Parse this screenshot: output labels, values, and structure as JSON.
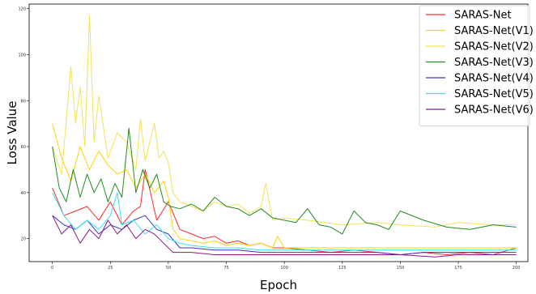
{
  "chart_data": {
    "type": "line",
    "xlabel": "Epoch",
    "ylabel": "Loss Value",
    "xlim": [
      -10,
      205
    ],
    "ylim": [
      10,
      122
    ],
    "xticks": [
      0,
      25,
      50,
      75,
      100,
      125,
      150,
      175,
      200
    ],
    "yticks": [
      20,
      40,
      60,
      80,
      100,
      120
    ],
    "grid": false,
    "legend_position": "top-right",
    "series": [
      {
        "name": "SARAS-Net",
        "color": "#ff2a2a",
        "x": [
          0,
          5,
          10,
          15,
          20,
          25,
          30,
          35,
          38,
          40,
          45,
          50,
          55,
          60,
          65,
          70,
          75,
          80,
          85,
          90,
          95,
          100,
          110,
          120,
          130,
          140,
          150,
          160,
          170,
          180,
          190,
          200
        ],
        "y": [
          42,
          30,
          32,
          34,
          28,
          36,
          26,
          32,
          34,
          50,
          28,
          36,
          24,
          22,
          20,
          21,
          18,
          19,
          17,
          18,
          16,
          16,
          15,
          14,
          15,
          14,
          13,
          14,
          13,
          14,
          13,
          16
        ]
      },
      {
        "name": "SARAS-Net(V1)",
        "color": "#ffd400",
        "x": [
          0,
          4,
          8,
          12,
          16,
          20,
          24,
          28,
          32,
          36,
          40,
          44,
          48,
          50,
          52,
          55,
          60,
          65,
          70,
          75,
          80,
          85,
          90,
          95,
          97,
          100,
          110,
          125,
          150,
          175,
          200
        ],
        "y": [
          70,
          55,
          45,
          60,
          50,
          58,
          52,
          48,
          50,
          42,
          48,
          40,
          45,
          38,
          24,
          20,
          19,
          18,
          19,
          17,
          18,
          17,
          18,
          16,
          21,
          16,
          16,
          16,
          16,
          16,
          16
        ]
      },
      {
        "name": "SARAS-Net(V2)",
        "color": "#f3e35a",
        "x": [
          0,
          4,
          8,
          10,
          12,
          14,
          16,
          18,
          20,
          24,
          28,
          32,
          36,
          38,
          40,
          44,
          46,
          48,
          50,
          52,
          55,
          60,
          65,
          70,
          75,
          80,
          85,
          90,
          92,
          95,
          100,
          110,
          125,
          140,
          150,
          165,
          175,
          190,
          200
        ],
        "y": [
          60,
          48,
          95,
          70,
          86,
          60,
          117,
          62,
          82,
          55,
          66,
          62,
          50,
          72,
          54,
          70,
          55,
          58,
          53,
          40,
          36,
          34,
          32,
          36,
          34,
          35,
          31,
          34,
          44,
          28,
          29,
          28,
          26,
          27,
          26,
          25,
          27,
          26,
          26
        ]
      },
      {
        "name": "SARAS-Net(V3)",
        "color": "#228b22",
        "x": [
          0,
          3,
          6,
          9,
          12,
          15,
          18,
          21,
          24,
          27,
          30,
          33,
          36,
          39,
          42,
          45,
          48,
          51,
          55,
          60,
          65,
          70,
          75,
          80,
          85,
          90,
          95,
          100,
          105,
          110,
          115,
          120,
          125,
          130,
          135,
          140,
          145,
          150,
          160,
          170,
          180,
          190,
          200
        ],
        "y": [
          60,
          42,
          36,
          50,
          38,
          48,
          40,
          46,
          36,
          44,
          38,
          68,
          40,
          50,
          42,
          48,
          36,
          34,
          33,
          35,
          32,
          38,
          34,
          33,
          30,
          33,
          29,
          28,
          27,
          33,
          26,
          25,
          22,
          32,
          27,
          26,
          24,
          32,
          28,
          25,
          24,
          26,
          25
        ]
      },
      {
        "name": "SARAS-Net(V4)",
        "color": "#3a35c8",
        "x": [
          0,
          5,
          10,
          15,
          20,
          25,
          30,
          35,
          40,
          45,
          50,
          55,
          60,
          70,
          80,
          90,
          100,
          110,
          125,
          140,
          150,
          160,
          175,
          190,
          200
        ],
        "y": [
          30,
          26,
          24,
          28,
          22,
          26,
          24,
          28,
          30,
          24,
          22,
          16,
          16,
          15,
          15,
          14,
          14,
          14,
          14,
          14,
          13,
          14,
          14,
          14,
          14
        ]
      },
      {
        "name": "SARAS-Net(V5)",
        "color": "#38e0ee",
        "x": [
          0,
          5,
          10,
          15,
          20,
          25,
          28,
          30,
          35,
          40,
          45,
          50,
          55,
          60,
          70,
          80,
          90,
          100,
          110,
          125,
          150,
          175,
          200
        ],
        "y": [
          40,
          30,
          24,
          28,
          24,
          30,
          40,
          26,
          28,
          22,
          26,
          20,
          18,
          17,
          16,
          16,
          15,
          15,
          15,
          15,
          15,
          15,
          15
        ]
      },
      {
        "name": "SARAS-Net(V6)",
        "color": "#8a1a8a",
        "x": [
          0,
          4,
          8,
          12,
          16,
          20,
          24,
          28,
          32,
          36,
          40,
          44,
          48,
          52,
          56,
          60,
          70,
          80,
          90,
          100,
          110,
          125,
          140,
          150,
          165,
          175,
          190,
          200
        ],
        "y": [
          30,
          22,
          26,
          18,
          24,
          20,
          28,
          22,
          26,
          20,
          24,
          22,
          18,
          14,
          14,
          14,
          13,
          13,
          13,
          13,
          13,
          13,
          13,
          13,
          12,
          13,
          13,
          13
        ]
      }
    ]
  }
}
